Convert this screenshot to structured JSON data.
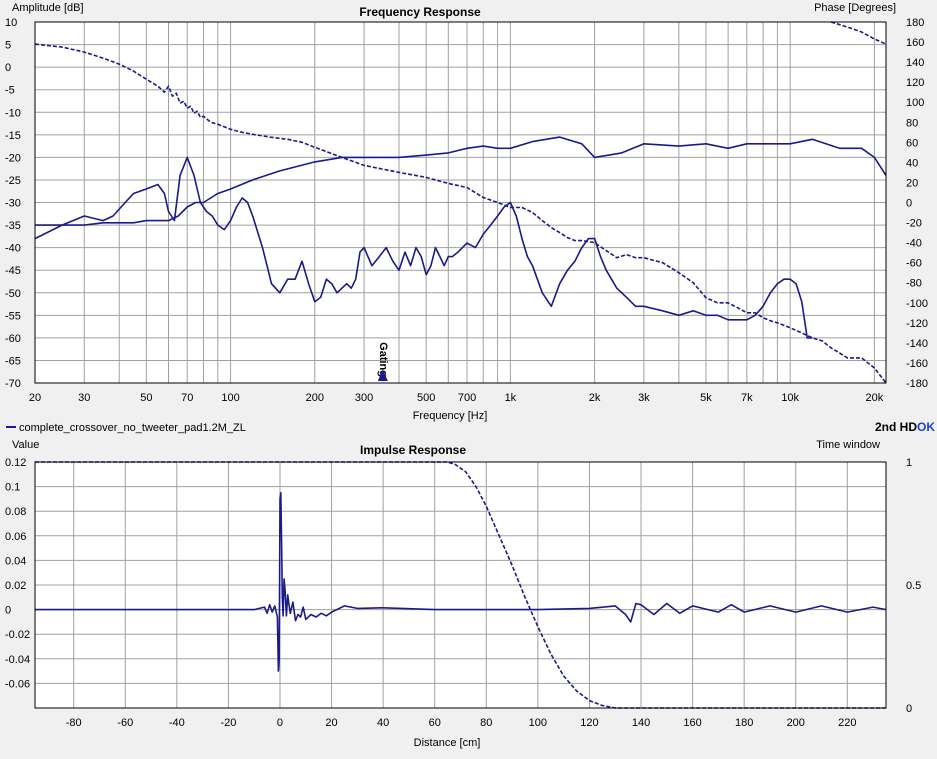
{
  "colors": {
    "trace": "#1a1a8c",
    "grid": "#a0a0a0",
    "plot_bg": "#ffffff",
    "window_bg": "#f0f0f0",
    "accent_ok": "#1f3fd6"
  },
  "legend": {
    "label": "complete_crossover_no_tweeter_pad1.2M_ZL",
    "harmonics_label": "2nd HD",
    "ok_label": "OK"
  },
  "chart_data": [
    {
      "type": "line",
      "title": "Frequency Response",
      "xlabel": "Frequency [Hz]",
      "ylabel": "Amplitude [dB]",
      "y2label": "Phase [Degrees]",
      "xscale": "log",
      "xlim": [
        20,
        22000
      ],
      "ylim": [
        -70,
        10
      ],
      "y2lim": [
        -180,
        180
      ],
      "grid": true,
      "marker_label": "Gating",
      "marker_x": 350,
      "x_ticks": [
        20,
        30,
        50,
        70,
        100,
        200,
        300,
        500,
        700,
        1000,
        2000,
        3000,
        5000,
        7000,
        10000,
        20000
      ],
      "x_tick_labels": [
        "20",
        "30",
        "50",
        "70",
        "100",
        "200",
        "300",
        "500",
        "700",
        "1k",
        "2k",
        "3k",
        "5k",
        "7k",
        "10k",
        "20k"
      ],
      "y_ticks": [
        10,
        5,
        0,
        -5,
        -10,
        -15,
        -20,
        -25,
        -30,
        -35,
        -40,
        -45,
        -50,
        -55,
        -60,
        -65,
        -70
      ],
      "y2_ticks": [
        180,
        160,
        140,
        120,
        100,
        80,
        60,
        40,
        20,
        0,
        -20,
        -40,
        -60,
        -80,
        -100,
        -120,
        -140,
        -160,
        -180
      ],
      "series": [
        {
          "style": "solid",
          "axis": "left",
          "x": [
            20,
            25,
            30,
            35,
            40,
            45,
            50,
            55,
            60,
            65,
            70,
            75,
            80,
            90,
            100,
            120,
            150,
            200,
            250,
            300,
            400,
            500,
            600,
            700,
            800,
            900,
            1000,
            1200,
            1500,
            1800,
            2000,
            2500,
            3000,
            4000,
            5000,
            6000,
            7000,
            8000,
            9000,
            10000,
            12000,
            15000,
            18000,
            20000,
            22000
          ],
          "y": [
            -35,
            -35,
            -35,
            -34.5,
            -34.5,
            -34.5,
            -34,
            -34,
            -34,
            -33,
            -31,
            -30,
            -30,
            -28,
            -27,
            -25,
            -23,
            -21,
            -20,
            -20,
            -20,
            -19.5,
            -19,
            -18,
            -17.5,
            -18,
            -18,
            -16.5,
            -15.5,
            -17,
            -20,
            -19,
            -17,
            -17.5,
            -17,
            -18,
            -17,
            -17,
            -17,
            -17,
            -16,
            -18,
            -18,
            -20,
            -24
          ]
        },
        {
          "style": "solid",
          "axis": "left",
          "x": [
            20,
            25,
            30,
            35,
            38,
            42,
            45,
            50,
            55,
            58,
            60,
            63,
            66,
            70,
            74,
            78,
            82,
            86,
            90,
            95,
            100,
            105,
            110,
            115,
            120,
            130,
            140,
            150,
            160,
            170,
            180,
            190,
            200,
            210,
            220,
            230,
            240,
            250,
            260,
            270,
            280,
            290,
            300,
            320,
            340,
            360,
            380,
            400,
            420,
            440,
            460,
            480,
            500,
            520,
            540,
            560,
            580,
            600,
            620,
            650,
            700,
            750,
            800,
            850,
            900,
            950,
            1000,
            1050,
            1100,
            1150,
            1200,
            1300,
            1400,
            1500,
            1600,
            1700,
            1800,
            1900,
            2000,
            2100,
            2200,
            2400,
            2600,
            2800,
            3000,
            3500,
            4000,
            4500,
            5000,
            5500,
            6000,
            6500,
            7000,
            7500,
            8000,
            8500,
            9000,
            9500,
            10000,
            10500,
            11000,
            11500,
            12000
          ],
          "y": [
            -38,
            -35,
            -33,
            -34,
            -33,
            -30,
            -28,
            -27,
            -26,
            -28,
            -32,
            -34,
            -24,
            -20,
            -24,
            -30,
            -32,
            -33,
            -35,
            -36,
            -34,
            -31,
            -29,
            -30,
            -33,
            -40,
            -48,
            -50,
            -47,
            -47,
            -43,
            -48,
            -52,
            -51,
            -47,
            -48,
            -50,
            -49,
            -48,
            -49,
            -47,
            -41,
            -40,
            -44,
            -42,
            -40,
            -43,
            -45,
            -41,
            -44,
            -40,
            -42,
            -46,
            -44,
            -40,
            -42,
            -44,
            -42,
            -42,
            -41,
            -39,
            -40,
            -37,
            -35,
            -33,
            -31,
            -30,
            -33,
            -38,
            -42,
            -44,
            -50,
            -53,
            -48,
            -45,
            -43,
            -40,
            -38,
            -38,
            -42,
            -45,
            -49,
            -51,
            -53,
            -53,
            -54,
            -55,
            -54,
            -55,
            -55,
            -56,
            -56,
            -56,
            -55,
            -53,
            -50,
            -48,
            -47,
            -47,
            -48,
            -52,
            -60,
            -60
          ]
        },
        {
          "style": "dashed",
          "axis": "right",
          "x": [
            20,
            25,
            30,
            35,
            40,
            45,
            50,
            55,
            58,
            60,
            62,
            64,
            66,
            68,
            70,
            72,
            74,
            76,
            78,
            80,
            85,
            90,
            100,
            110,
            120,
            140,
            160,
            180,
            200,
            250,
            300,
            400,
            500,
            600,
            700,
            800,
            900,
            1000,
            1100,
            1200,
            1300,
            1400,
            1500,
            1600,
            1700,
            1800,
            2000,
            2200,
            2400,
            2600,
            2800,
            3000,
            3500,
            4000,
            4500,
            5000,
            5500,
            6000,
            6500,
            7000,
            7500,
            8000,
            8500,
            9000,
            10000,
            11000,
            12000,
            13000,
            14000,
            15000,
            16000,
            18000,
            20000,
            22000
          ],
          "y": [
            158,
            155,
            150,
            144,
            138,
            131,
            123,
            116,
            110,
            116,
            106,
            109,
            99,
            101,
            94,
            96,
            89,
            91,
            85,
            86,
            80,
            78,
            73,
            70,
            68,
            65,
            63,
            60,
            55,
            45,
            37,
            30,
            25,
            19,
            15,
            5,
            0,
            -5,
            -5,
            -10,
            -18,
            -25,
            -30,
            -35,
            -38,
            -38,
            -40,
            -48,
            -55,
            -52,
            -55,
            -55,
            -60,
            -70,
            -80,
            -95,
            -100,
            -100,
            -105,
            -110,
            -110,
            -115,
            -118,
            -120,
            -125,
            -130,
            -135,
            -138,
            -145,
            -150,
            -155,
            -155,
            -165,
            -180
          ]
        },
        {
          "style": "dashed",
          "axis": "right",
          "x": [
            14000,
            16000,
            18000,
            20000,
            22000
          ],
          "y": [
            180,
            175,
            170,
            163,
            158
          ]
        }
      ]
    },
    {
      "type": "line",
      "title": "Impulse Response",
      "xlabel": "Distance [cm]",
      "ylabel": "Value",
      "y2label": "Time window",
      "xlim": [
        -95,
        235
      ],
      "ylim": [
        -0.08,
        0.12
      ],
      "y2lim": [
        0,
        1
      ],
      "grid": true,
      "x_ticks": [
        -80,
        -60,
        -40,
        -20,
        0,
        20,
        40,
        60,
        80,
        100,
        120,
        140,
        160,
        180,
        200,
        220
      ],
      "y_ticks": [
        0.12,
        0.1,
        0.08,
        0.06,
        0.04,
        0.02,
        0,
        -0.02,
        -0.04,
        -0.06
      ],
      "y2_ticks": [
        1,
        0.5,
        0
      ],
      "series": [
        {
          "style": "solid",
          "axis": "left",
          "x": [
            -95,
            -10,
            -6,
            -5,
            -4,
            -3,
            -2,
            -1,
            -0.6,
            -0.3,
            0,
            0.3,
            0.6,
            0.9,
            1.2,
            1.6,
            2,
            2.5,
            3,
            3.5,
            4,
            5,
            6,
            7,
            8,
            9,
            10,
            12,
            14,
            16,
            18,
            20,
            25,
            30,
            40,
            60,
            80,
            100,
            120,
            130,
            134,
            136,
            138,
            140,
            145,
            150,
            155,
            160,
            170,
            175,
            180,
            190,
            200,
            210,
            220,
            230,
            235
          ],
          "y": [
            0,
            0,
            0.002,
            -0.003,
            0.004,
            -0.002,
            0.003,
            -0.006,
            -0.05,
            -0.04,
            0.09,
            0.095,
            0.06,
            0.01,
            -0.005,
            0.025,
            0.015,
            -0.005,
            0.012,
            0.004,
            -0.003,
            0.006,
            -0.009,
            -0.004,
            -0.006,
            0.002,
            -0.008,
            -0.004,
            -0.006,
            -0.003,
            -0.005,
            -0.002,
            0.003,
            0.001,
            0.0015,
            0,
            0,
            0,
            0.001,
            0.003,
            -0.004,
            -0.01,
            0.005,
            0.004,
            -0.004,
            0.005,
            -0.003,
            0.003,
            -0.002,
            0.004,
            -0.002,
            0.003,
            -0.002,
            0.003,
            -0.002,
            0.002,
            0
          ]
        },
        {
          "style": "dashed",
          "axis": "right",
          "x": [
            -95,
            60,
            65,
            68,
            72,
            76,
            80,
            85,
            90,
            95,
            100,
            105,
            110,
            115,
            120,
            125,
            130,
            132,
            235
          ],
          "y": [
            1,
            1,
            1,
            0.99,
            0.96,
            0.9,
            0.82,
            0.7,
            0.58,
            0.45,
            0.33,
            0.22,
            0.13,
            0.07,
            0.03,
            0.01,
            0,
            0,
            0
          ]
        }
      ]
    }
  ]
}
